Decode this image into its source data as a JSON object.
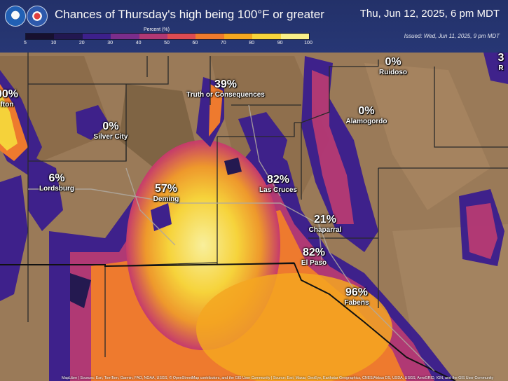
{
  "header": {
    "title": "Chances of Thursday's high being 100°F or greater",
    "datetime": "Thu, Jun 12, 2025, 6 pm MDT",
    "issued": "Issued: Wed, Jun 11, 2025, 9 pm MDT",
    "logos": [
      "NOAA",
      "NWS"
    ]
  },
  "legend": {
    "title": "Percent (%)",
    "ticks": [
      "5",
      "10",
      "20",
      "30",
      "40",
      "50",
      "60",
      "70",
      "80",
      "90",
      "100"
    ],
    "colors": [
      "#120c2e",
      "#1e1450",
      "#3a1d8e",
      "#7a2a8e",
      "#b23676",
      "#e04a52",
      "#f37b2c",
      "#f9a91e",
      "#fbd83a",
      "#fdf48a"
    ]
  },
  "places": [
    {
      "pct": "00%",
      "name": "fton"
    },
    {
      "pct": "0%",
      "name": "Silver City"
    },
    {
      "pct": "39%",
      "name": "Truth or Consequences"
    },
    {
      "pct": "0%",
      "name": "Ruidoso"
    },
    {
      "pct": "0%",
      "name": "Alamogordo"
    },
    {
      "pct": "6%",
      "name": "Lordsburg"
    },
    {
      "pct": "57%",
      "name": "Deming"
    },
    {
      "pct": "82%",
      "name": "Las Cruces"
    },
    {
      "pct": "21%",
      "name": "Chaparral"
    },
    {
      "pct": "82%",
      "name": "El Paso"
    },
    {
      "pct": "96%",
      "name": "Fabens"
    },
    {
      "pct": "3",
      "name": "R"
    }
  ],
  "attribution": "MapLibre | Sources: Esri, TomTom, Garmin, FAO, NOAA, USGS, © OpenStreetMap contributors, and the GIS User Community | Source: Esri, Maxar, GeoEye, Earthstar Geographics, CNES/Airbus DS, USDA, USGS, AeroGRID, IGN, and the GIS User Community",
  "colors": {
    "header": "#233577",
    "terrain": "#9a7a58",
    "border": "#2a2a2a"
  }
}
